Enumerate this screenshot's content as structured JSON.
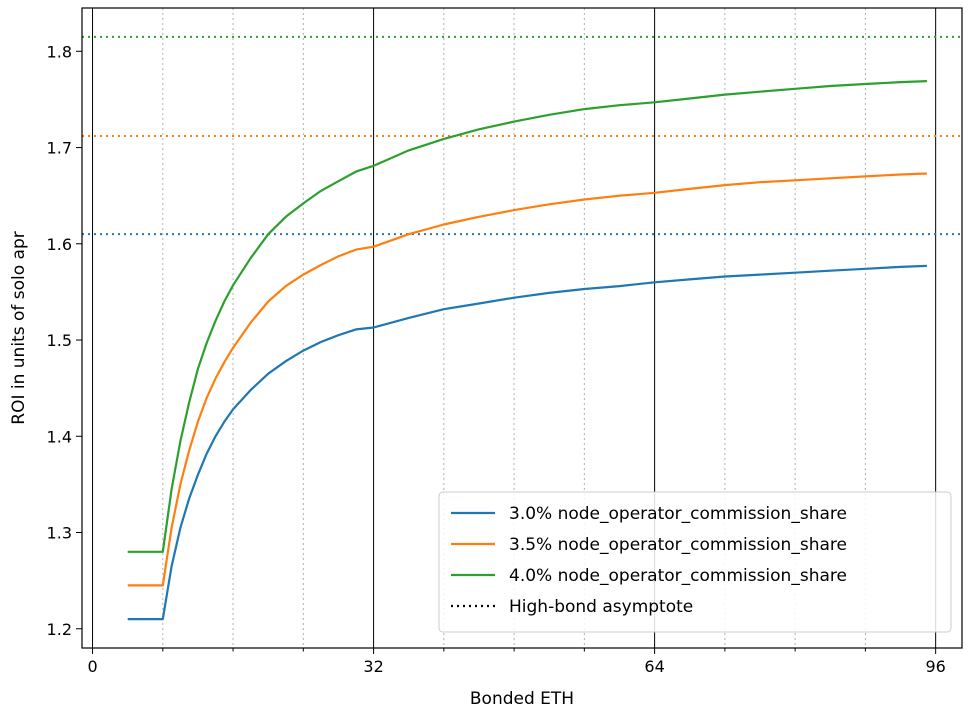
{
  "chart_data": {
    "type": "line",
    "xlabel": "Bonded ETH",
    "ylabel": "ROI in units of solo apr",
    "xlim": [
      -1.2,
      99
    ],
    "ylim": [
      1.18,
      1.845
    ],
    "x_major_ticks": [
      0,
      32,
      64,
      96
    ],
    "x_minor_ticks": [
      8,
      16,
      24,
      40,
      48,
      56,
      72,
      80,
      88
    ],
    "y_ticks": [
      1.2,
      1.3,
      1.4,
      1.5,
      1.6,
      1.7,
      1.8
    ],
    "y_tick_labels": [
      "1.2",
      "1.3",
      "1.4",
      "1.5",
      "1.6",
      "1.7",
      "1.8"
    ],
    "x_tick_labels": [
      "0",
      "32",
      "64",
      "96"
    ],
    "grid": {
      "x_major": "solid",
      "x_minor": "dotted",
      "y": false
    },
    "legend_position": "lower-right",
    "series": [
      {
        "name": "3.0% node_operator_commission_share",
        "color": "#1f77b4",
        "x": [
          4,
          8,
          9,
          10,
          11,
          12,
          13,
          14,
          15,
          16,
          18,
          20,
          22,
          24,
          26,
          28,
          30,
          32,
          36,
          40,
          44,
          48,
          52,
          56,
          60,
          64,
          68,
          72,
          76,
          80,
          84,
          88,
          92,
          95
        ],
        "y": [
          1.21,
          1.21,
          1.265,
          1.305,
          1.335,
          1.36,
          1.382,
          1.4,
          1.415,
          1.428,
          1.448,
          1.465,
          1.478,
          1.489,
          1.498,
          1.505,
          1.511,
          1.513,
          1.523,
          1.532,
          1.538,
          1.544,
          1.549,
          1.553,
          1.556,
          1.56,
          1.563,
          1.566,
          1.568,
          1.57,
          1.572,
          1.574,
          1.576,
          1.577
        ]
      },
      {
        "name": "3.5% node_operator_commission_share",
        "color": "#ff7f0e",
        "x": [
          4,
          8,
          9,
          10,
          11,
          12,
          13,
          14,
          15,
          16,
          18,
          20,
          22,
          24,
          26,
          28,
          30,
          32,
          36,
          40,
          44,
          48,
          52,
          56,
          60,
          64,
          68,
          72,
          76,
          80,
          84,
          88,
          92,
          95
        ],
        "y": [
          1.245,
          1.245,
          1.305,
          1.35,
          1.385,
          1.415,
          1.44,
          1.46,
          1.477,
          1.492,
          1.518,
          1.54,
          1.556,
          1.568,
          1.578,
          1.587,
          1.594,
          1.597,
          1.61,
          1.62,
          1.628,
          1.635,
          1.641,
          1.646,
          1.65,
          1.653,
          1.657,
          1.661,
          1.664,
          1.666,
          1.668,
          1.67,
          1.672,
          1.673
        ]
      },
      {
        "name": "4.0% node_operator_commission_share",
        "color": "#2ca02c",
        "x": [
          4,
          8,
          9,
          10,
          11,
          12,
          13,
          14,
          15,
          16,
          18,
          20,
          22,
          24,
          26,
          28,
          30,
          32,
          36,
          40,
          44,
          48,
          52,
          56,
          60,
          64,
          68,
          72,
          76,
          80,
          84,
          88,
          92,
          95
        ],
        "y": [
          1.28,
          1.28,
          1.345,
          1.395,
          1.435,
          1.47,
          1.497,
          1.52,
          1.54,
          1.557,
          1.585,
          1.61,
          1.628,
          1.642,
          1.655,
          1.665,
          1.675,
          1.681,
          1.697,
          1.709,
          1.719,
          1.727,
          1.734,
          1.74,
          1.744,
          1.747,
          1.751,
          1.755,
          1.758,
          1.761,
          1.764,
          1.766,
          1.768,
          1.769
        ]
      }
    ],
    "asymptotes": [
      {
        "y": 1.61,
        "color": "#1f77b4"
      },
      {
        "y": 1.712,
        "color": "#ff7f0e"
      },
      {
        "y": 1.815,
        "color": "#2ca02c"
      }
    ],
    "legend": [
      {
        "label": "3.0% node_operator_commission_share",
        "color": "#1f77b4",
        "style": "solid"
      },
      {
        "label": "3.5% node_operator_commission_share",
        "color": "#ff7f0e",
        "style": "solid"
      },
      {
        "label": "4.0% node_operator_commission_share",
        "color": "#2ca02c",
        "style": "solid"
      },
      {
        "label": "High-bond asymptote",
        "color": "#000000",
        "style": "dotted"
      }
    ]
  }
}
